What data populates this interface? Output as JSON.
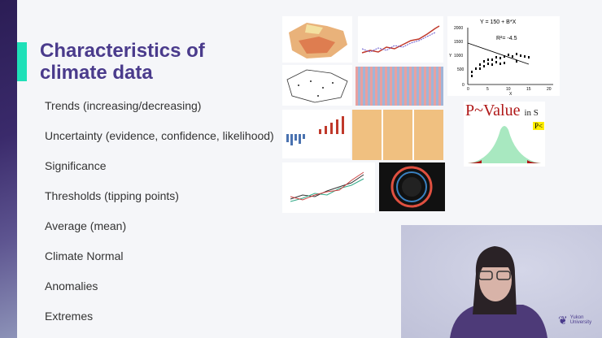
{
  "slide": {
    "title_line1": "Characteristics of",
    "title_line2": "climate data",
    "bullets": [
      "Trends (increasing/decreasing)",
      "Uncertainty (evidence, confidence, likelihood)",
      "Significance",
      "Thresholds (tipping points)",
      "Average (mean)",
      "Climate Normal",
      "Anomalies",
      "Extremes"
    ],
    "accent_color": "#1fe0b8",
    "title_color": "#4a3b8c"
  },
  "scatter_figure": {
    "equation": "Y = 150 +  B*X",
    "r2": "R²= -4.5",
    "y_ticks": [
      "0",
      "500",
      "1000",
      "1500",
      "2000"
    ],
    "x_ticks": [
      "0",
      "5",
      "10",
      "15",
      "20"
    ],
    "y_label": "Y",
    "x_label": "X"
  },
  "pvalue_figure": {
    "title": "P~Value",
    "suffix": "in S",
    "badge": "P<"
  },
  "webcam": {
    "logo_line1": "Yukon",
    "logo_line2": "University"
  }
}
